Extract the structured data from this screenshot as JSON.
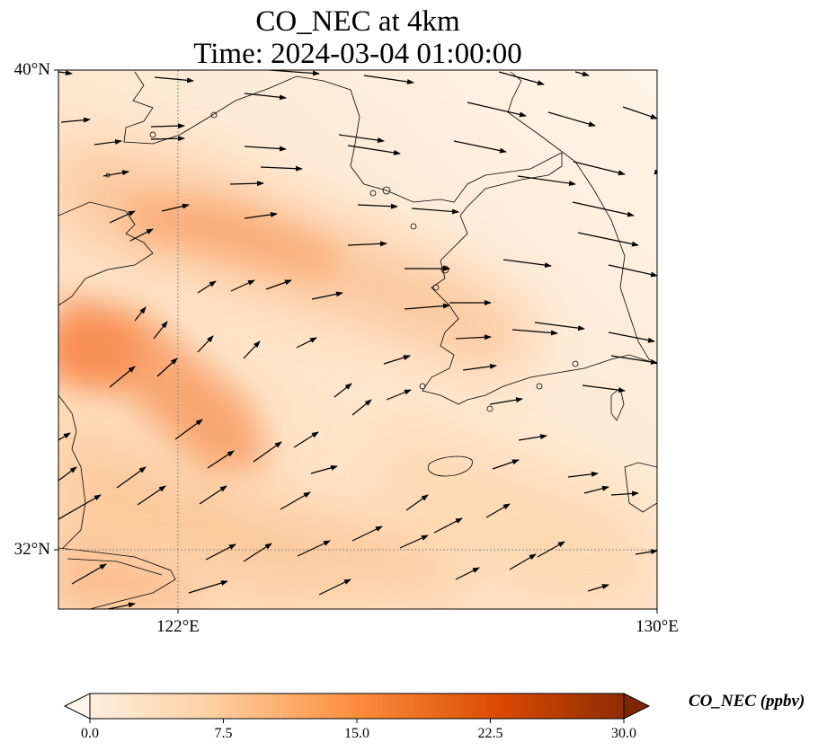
{
  "title": {
    "line1": "CO_NEC at 4km",
    "line2": "Time: 2024-03-04 01:00:00"
  },
  "lat_labels": [
    "40°N",
    "32°N"
  ],
  "lon_labels": [
    "122°E",
    "130°E"
  ],
  "map": {
    "region": "Yellow Sea / Korean Peninsula",
    "extent": {
      "lon": [
        120,
        130
      ],
      "lat": [
        31,
        40
      ]
    },
    "gridlines": {
      "lon": [
        122
      ],
      "lat": [
        32
      ],
      "style": "dotted"
    },
    "plume_color_hex": "#f57c45",
    "wind_vectors": "shown"
  },
  "colorbar": {
    "label": "CO_NEC (ppbv)",
    "ticks": [
      "0.0",
      "7.5",
      "15.0",
      "22.5",
      "30.0"
    ],
    "range": [
      0,
      30
    ],
    "colors": [
      "#fff5eb",
      "#fdd0a2",
      "#fd8d3c",
      "#d94801",
      "#7f2704"
    ],
    "extend": "both"
  }
}
